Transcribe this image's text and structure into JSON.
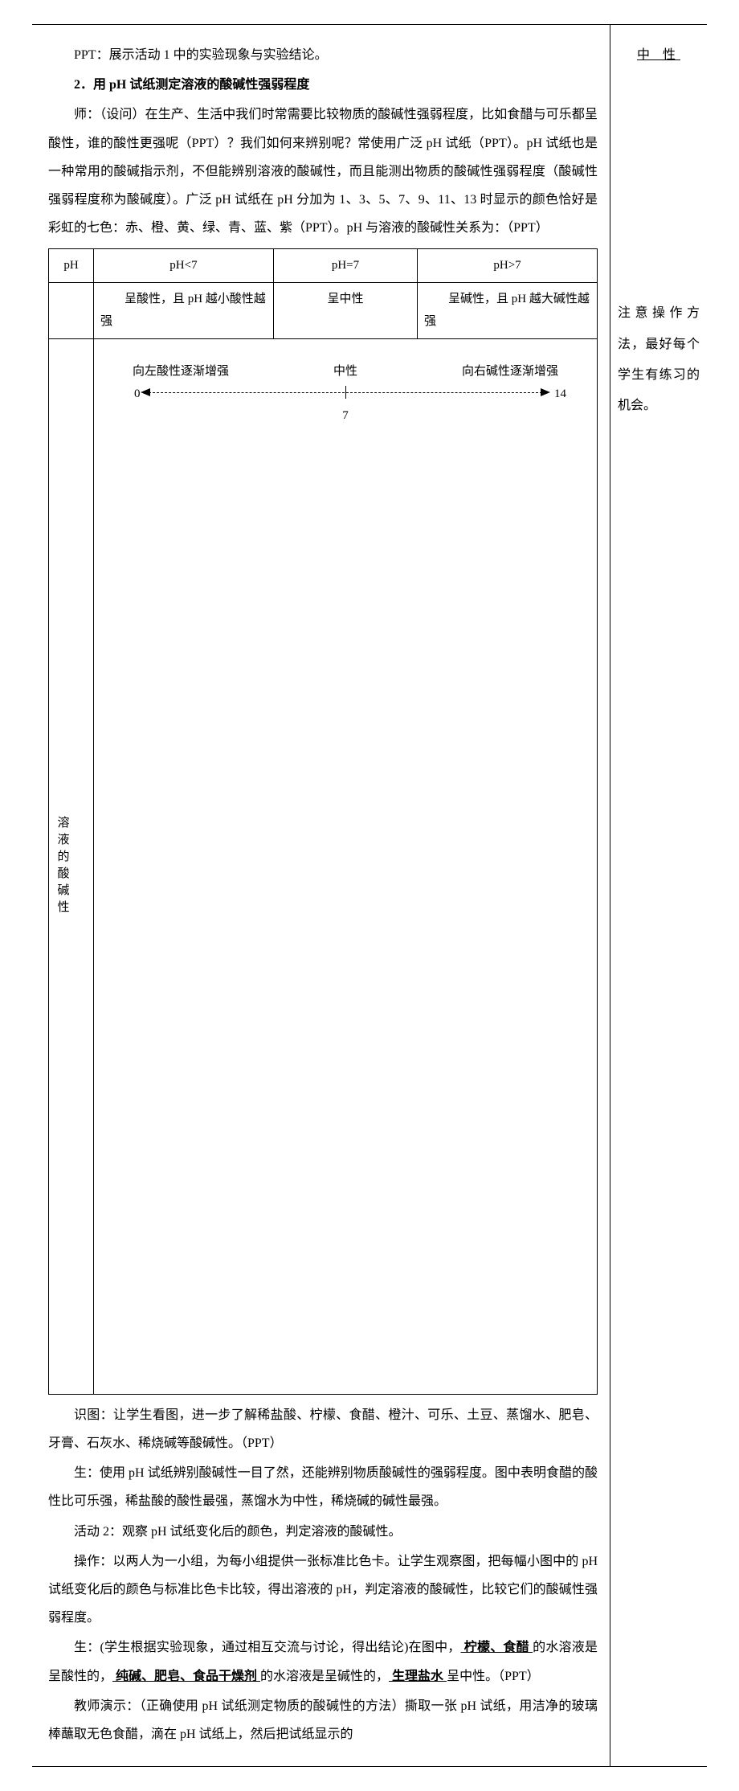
{
  "main": {
    "p1": "PPT：展示活动 1 中的实验现象与实验结论。",
    "heading2": "2．用 pH 试纸测定溶液的酸碱性强弱程度",
    "p2": "师：（设问）在生产、生活中我们时常需要比较物质的酸碱性强弱程度，比如食醋与可乐都呈酸性，谁的酸性更强呢（PPT）？我们如何来辨别呢？常使用广泛 pH 试纸（PPT）。pH 试纸也是一种常用的酸碱指示剂，不但能辨别溶液的酸碱性，而且能测出物质的酸碱性强弱程度（酸碱性强弱程度称为酸碱度）。广泛 pH 试纸在 pH 分加为 1、3、5、7、9、11、13 时显示的颜色恰好是彩虹的七色：赤、橙、黄、绿、青、蓝、紫（PPT）。pH 与溶液的酸碱性关系为：（PPT）",
    "p3": "识图：让学生看图，进一步了解稀盐酸、柠檬、食醋、橙汁、可乐、土豆、蒸馏水、肥皂、牙膏、石灰水、稀烧碱等酸碱性。（PPT）",
    "p4": "生：使用 pH 试纸辨别酸碱性一目了然，还能辨别物质酸碱性的强弱程度。图中表明食醋的酸性比可乐强，稀盐酸的酸性最强，蒸馏水为中性，稀烧碱的碱性最强。",
    "p5": "活动 2：观察 pH 试纸变化后的颜色，判定溶液的酸碱性。",
    "p6": "操作：以两人为一小组，为每小组提供一张标准比色卡。让学生观察图，把每幅小图中的 pH 试纸变化后的颜色与标准比色卡比较，得出溶液的 pH，判定溶液的酸碱性，比较它们的酸碱性强弱程度。",
    "p7_prefix": "生：(学生根据实验现象，通过相互交流与讨论，得出结论)在图中，",
    "p7_u1": " 柠檬、食醋 ",
    "p7_mid1": "的水溶液是呈酸性的，",
    "p7_u2": " 纯碱、肥皂、食品干燥剂 ",
    "p7_mid2": "的水溶液是呈碱性的，",
    "p7_u3": " 生理盐水 ",
    "p7_suffix": "呈中性。（PPT）",
    "p8": "教师演示：（正确使用 pH 试纸测定物质的酸碱性的方法）撕取一张 pH 试纸，用洁净的玻璃棒蘸取无色食醋，滴在 pH 试纸上，然后把试纸显示的"
  },
  "table": {
    "header": {
      "ph": "pH",
      "lt7": "pH<7",
      "eq7": "pH=7",
      "gt7": "pH>7"
    },
    "row2": {
      "lt7": "呈酸性，且 pH 越小酸性越强",
      "eq7": "呈中性",
      "gt7": "呈碱性，且 pH 越大碱性越强"
    },
    "row3": {
      "label": "溶液的酸碱性",
      "left_text": "向左酸性逐渐增强",
      "center_text": "中性",
      "right_text": "向右碱性逐渐增强",
      "num0": "0",
      "num7": "7",
      "num14": "14"
    }
  },
  "side": {
    "top": "中 性",
    "note": "注意操作方法，最好每个学生有练习的机会。"
  },
  "colors": {
    "text": "#000000",
    "border": "#000000",
    "background": "#ffffff"
  }
}
